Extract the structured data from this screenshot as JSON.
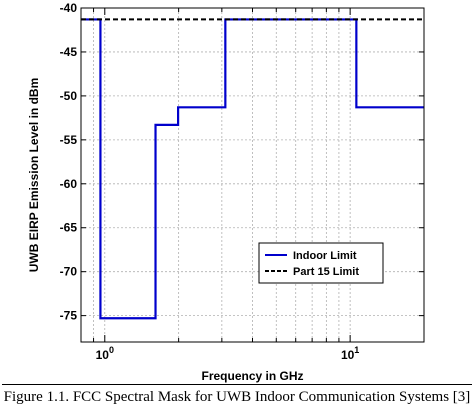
{
  "caption": "Figure 1.1.  FCC Spectral Mask for UWB Indoor Communication Systems [3]",
  "chart_data": {
    "type": "line",
    "title": "",
    "xlabel": "Frequency in GHz",
    "ylabel": "UWB EIRP Emission Level in dBm",
    "xscale": "log",
    "xlim": [
      0.8,
      20
    ],
    "ylim": [
      -78,
      -40
    ],
    "grid": true,
    "legend_position": "lower-right",
    "y_ticks": [
      -40,
      -45,
      -50,
      -55,
      -60,
      -65,
      -70,
      -75
    ],
    "x_ticks": [
      {
        "value": 1,
        "base": "10",
        "exp": "0"
      },
      {
        "value": 10,
        "base": "10",
        "exp": "1"
      }
    ],
    "series": [
      {
        "name": "Indoor Limit",
        "style": "solid",
        "color": "#0000cc",
        "x": [
          0.8,
          0.96,
          0.96,
          1.61,
          1.61,
          1.99,
          1.99,
          3.1,
          3.1,
          10.6,
          10.6,
          20
        ],
        "y": [
          -41.3,
          -41.3,
          -75.3,
          -75.3,
          -53.3,
          -53.3,
          -51.3,
          -51.3,
          -41.3,
          -41.3,
          -51.3,
          -51.3
        ]
      },
      {
        "name": "Part 15 Limit",
        "style": "dashed",
        "color": "#000000",
        "x": [
          0.8,
          20
        ],
        "y": [
          -41.3,
          -41.3
        ]
      }
    ]
  }
}
